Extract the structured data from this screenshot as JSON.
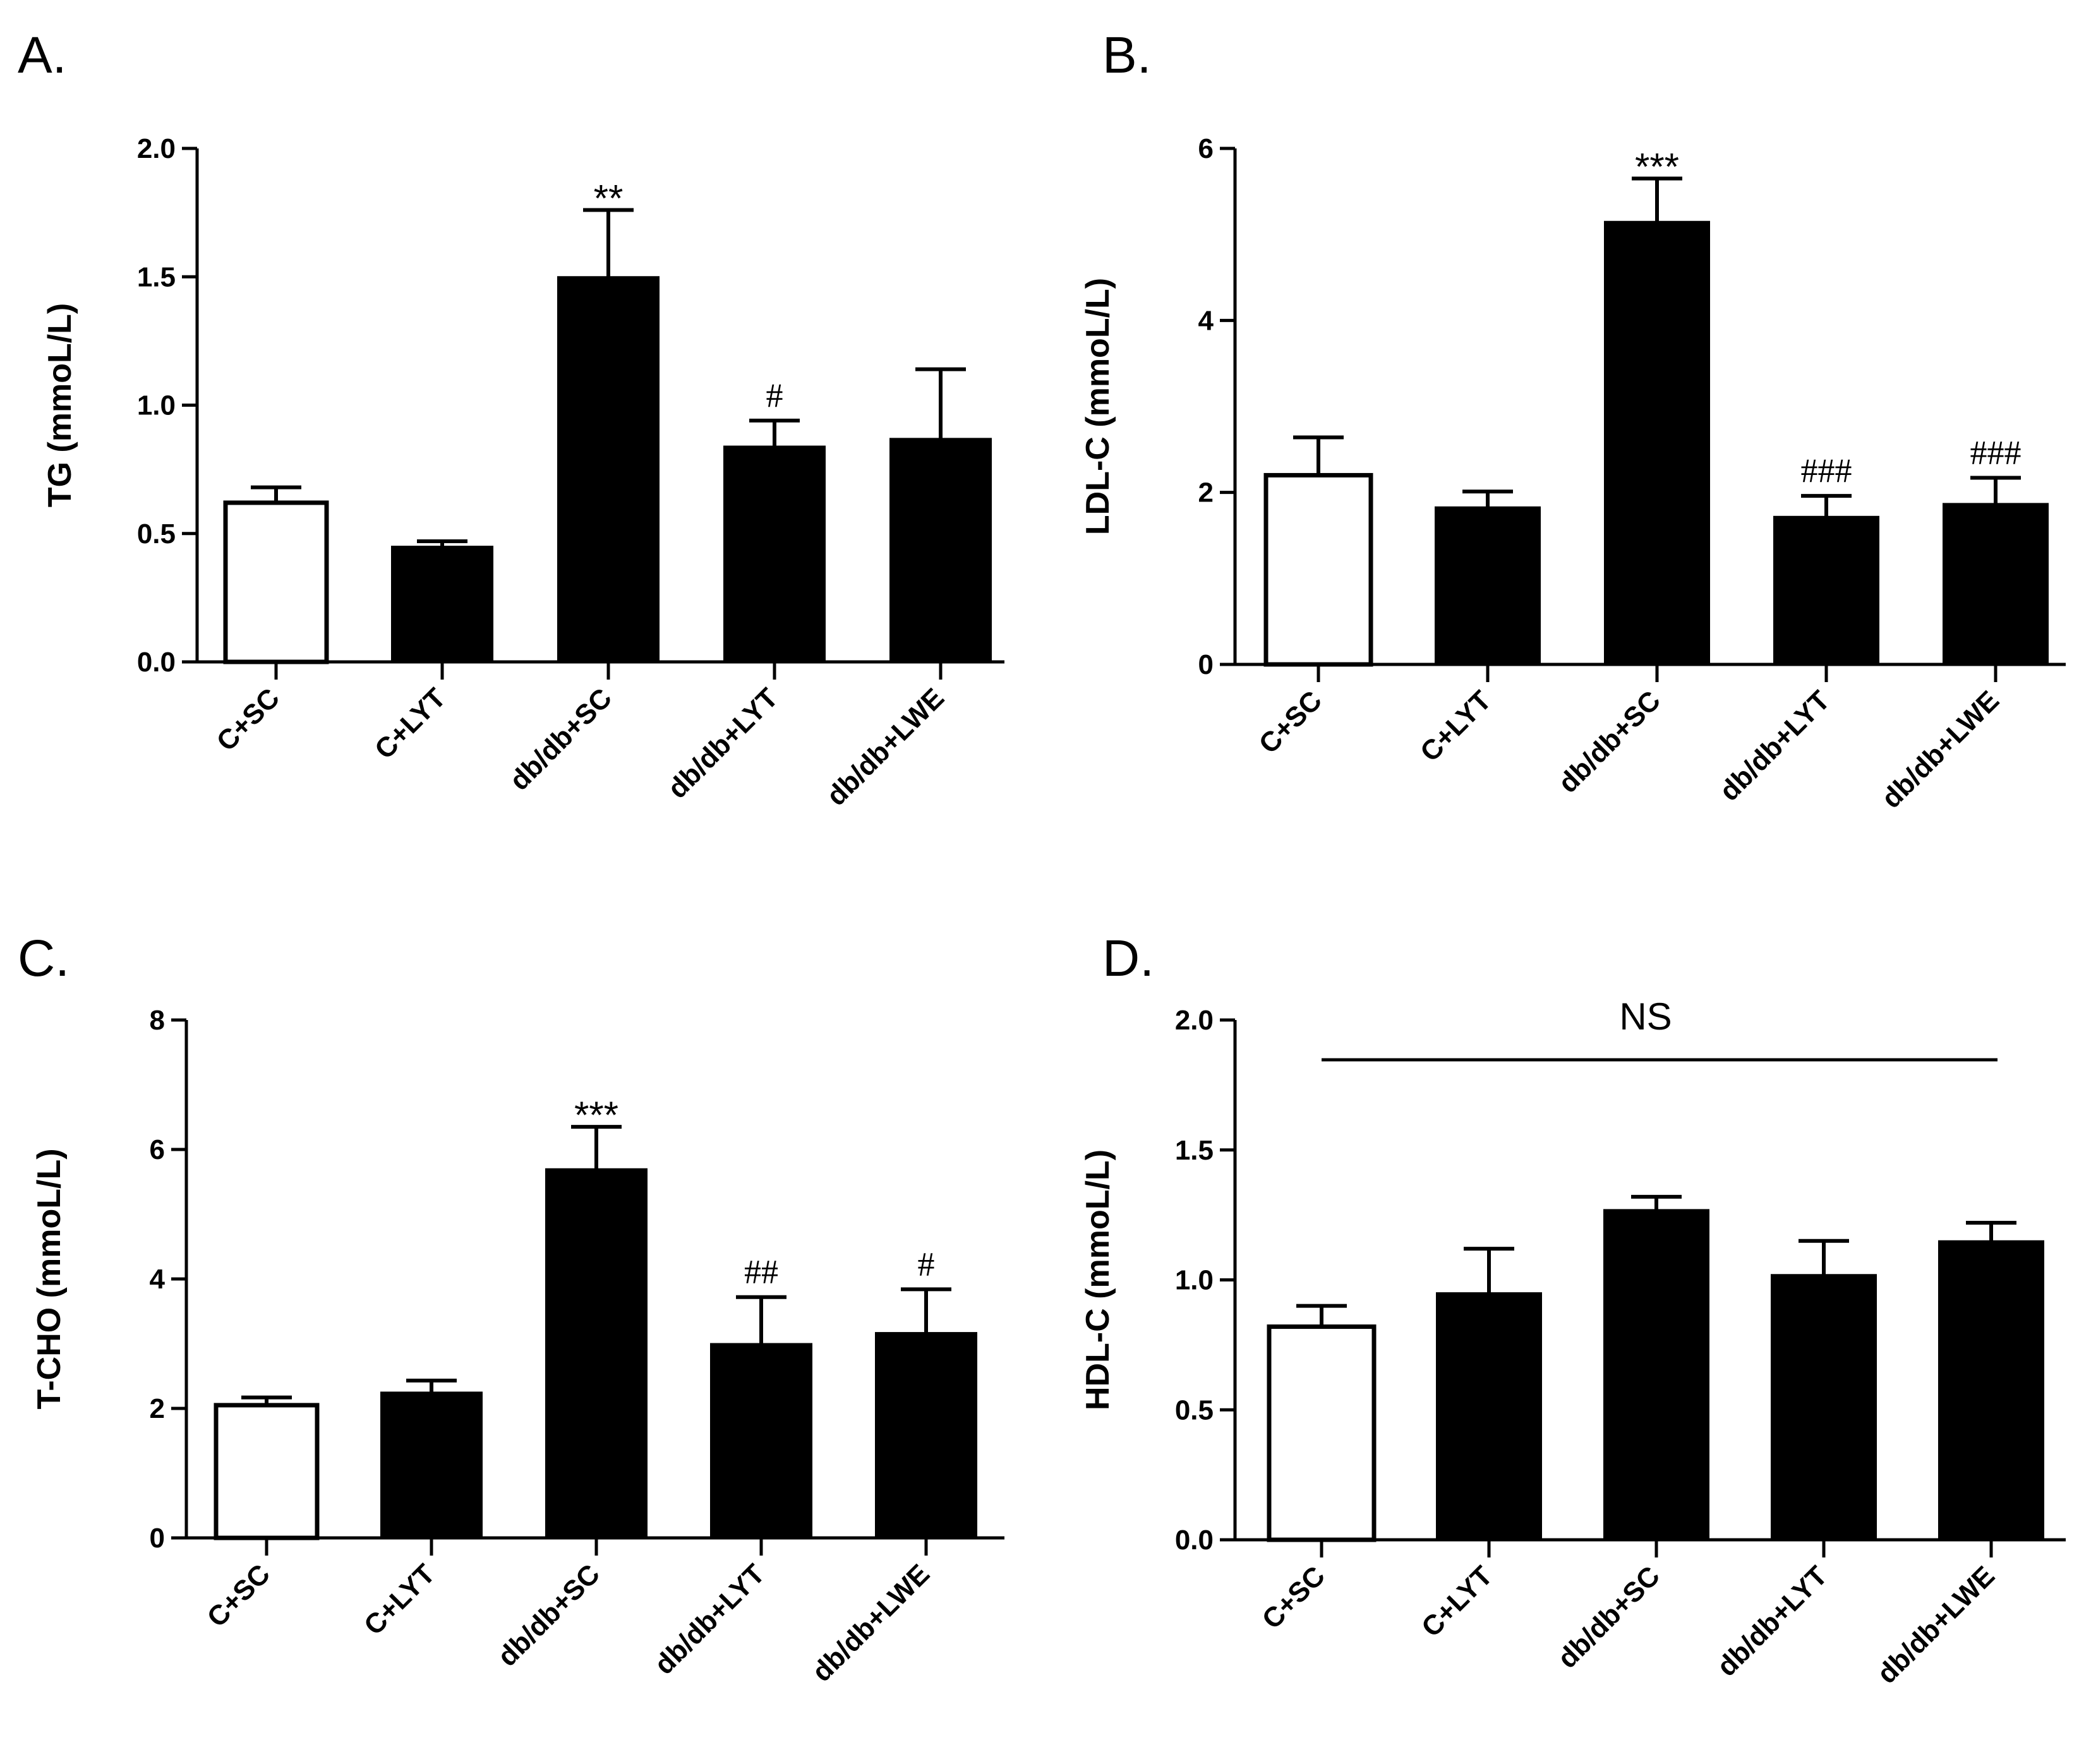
{
  "chart_data": [
    {
      "type": "bar",
      "panel": "A.",
      "ylabel": "TG (mmoL/L)",
      "ylim": [
        0,
        2.0
      ],
      "yticks": [
        "0.0",
        "0.5",
        "1.0",
        "1.5",
        "2.0"
      ],
      "categories": [
        "C+SC",
        "C+LYT",
        "db/db+SC",
        "db/db+LYT",
        "db/db+LWE"
      ],
      "values": [
        0.62,
        0.45,
        1.5,
        0.84,
        0.87
      ],
      "errors": [
        0.06,
        0.02,
        0.26,
        0.1,
        0.27
      ],
      "fills": [
        "white",
        "black",
        "black",
        "black",
        "black"
      ],
      "annotations": [
        "",
        "",
        "**",
        "#",
        ""
      ]
    },
    {
      "type": "bar",
      "panel": "B.",
      "ylabel": "LDL-C (mmoL/L)",
      "ylim": [
        0,
        6
      ],
      "yticks": [
        "0",
        "2",
        "4",
        "6"
      ],
      "categories": [
        "C+SC",
        "C+LYT",
        "db/db+SC",
        "db/db+LYT",
        "db/db+LWE"
      ],
      "values": [
        2.2,
        1.83,
        5.15,
        1.72,
        1.87
      ],
      "errors": [
        0.44,
        0.18,
        0.5,
        0.24,
        0.3
      ],
      "fills": [
        "white",
        "black",
        "black",
        "black",
        "black"
      ],
      "annotations": [
        "",
        "",
        "***",
        "###",
        "###"
      ]
    },
    {
      "type": "bar",
      "panel": "C.",
      "ylabel": "T-CHO (mmoL/L)",
      "ylim": [
        0,
        8
      ],
      "yticks": [
        "0",
        "2",
        "4",
        "6",
        "8"
      ],
      "categories": [
        "C+SC",
        "C+LYT",
        "db/db+SC",
        "db/db+LYT",
        "db/db+LWE"
      ],
      "values": [
        2.05,
        2.25,
        5.7,
        3.0,
        3.17
      ],
      "errors": [
        0.12,
        0.18,
        0.65,
        0.72,
        0.67
      ],
      "fills": [
        "white",
        "black",
        "black",
        "black",
        "black"
      ],
      "annotations": [
        "",
        "",
        "***",
        "##",
        "#"
      ]
    },
    {
      "type": "bar",
      "panel": "D.",
      "ylabel": "HDL-C (mmoL/L)",
      "ylim": [
        0,
        2.0
      ],
      "yticks": [
        "0.0",
        "0.5",
        "1.0",
        "1.5",
        "2.0"
      ],
      "categories": [
        "C+SC",
        "C+LYT",
        "db/db+SC",
        "db/db+LYT",
        "db/db+LWE"
      ],
      "values": [
        0.82,
        0.95,
        1.27,
        1.02,
        1.15
      ],
      "errors": [
        0.08,
        0.17,
        0.05,
        0.13,
        0.07
      ],
      "fills": [
        "white",
        "black",
        "black",
        "black",
        "black"
      ],
      "annotations": [
        "",
        "",
        "",
        "",
        ""
      ],
      "bracket_label": "NS"
    }
  ]
}
